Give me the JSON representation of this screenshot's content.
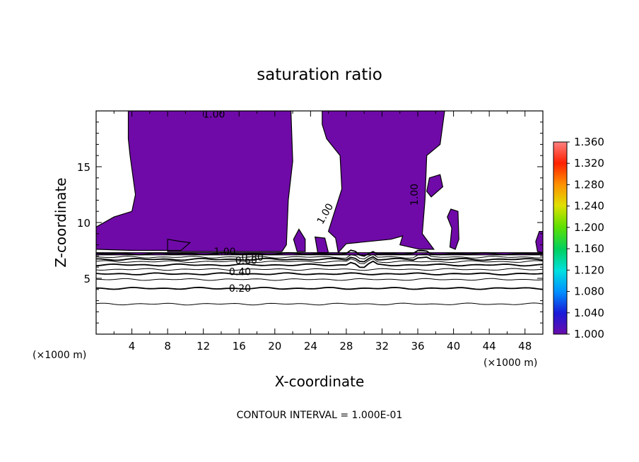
{
  "chart_data": {
    "type": "contour",
    "title": "saturation ratio",
    "xlabel": "X-coordinate",
    "ylabel": "Z-coordinate",
    "x_unit_left": "(×1000 m)",
    "x_unit_right": "(×1000 m)",
    "footer": "CONTOUR INTERVAL = 1.000E-01",
    "xlim": [
      0,
      50
    ],
    "ylim": [
      0,
      20
    ],
    "x_ticks": [
      4,
      8,
      12,
      16,
      20,
      24,
      28,
      32,
      36,
      40,
      44,
      48
    ],
    "y_ticks": [
      5,
      10,
      15
    ],
    "contour_interval": 0.1,
    "contour_lines": [
      {
        "level": 0.1,
        "z": 2.7
      },
      {
        "level": 0.2,
        "z": 4.1
      },
      {
        "level": 0.3,
        "z": 4.9
      },
      {
        "level": 0.4,
        "z": 5.4
      },
      {
        "level": 0.5,
        "z": 5.8
      },
      {
        "level": 0.6,
        "z": 6.2
      },
      {
        "level": 0.7,
        "z": 6.5
      },
      {
        "level": 0.8,
        "z": 6.7
      },
      {
        "level": 0.9,
        "z": 6.9
      },
      {
        "level": 1.0,
        "z": 7.2
      }
    ],
    "contour_labels": [
      {
        "text": "0.20",
        "x": 16.1,
        "z": 4.1
      },
      {
        "text": "0.40",
        "x": 16.1,
        "z": 5.6
      },
      {
        "text": "0.60",
        "x": 16.8,
        "z": 6.6
      },
      {
        "text": "0.80",
        "x": 17.5,
        "z": 6.9
      },
      {
        "text": "1.00",
        "x": 14.4,
        "z": 7.4
      },
      {
        "text": "1.00",
        "x": 13.2,
        "z": 19.7
      },
      {
        "text": "1.00",
        "x": 25.6,
        "z": 10.8
      },
      {
        "text": "1.00",
        "x": 35.6,
        "z": 12.5
      }
    ],
    "colorbar": {
      "ticks": [
        "1.360",
        "1.320",
        "1.280",
        "1.240",
        "1.200",
        "1.160",
        "1.120",
        "1.080",
        "1.040",
        "1.000"
      ],
      "min": 1.0,
      "max": 1.36,
      "colors": [
        "#6a0dad",
        "#1a1ad8",
        "#0090ff",
        "#00e0e0",
        "#00d060",
        "#60e000",
        "#e0e000",
        "#ff9000",
        "#ff2000",
        "#ff8080"
      ]
    },
    "fill_color": "#6f0aa8"
  }
}
